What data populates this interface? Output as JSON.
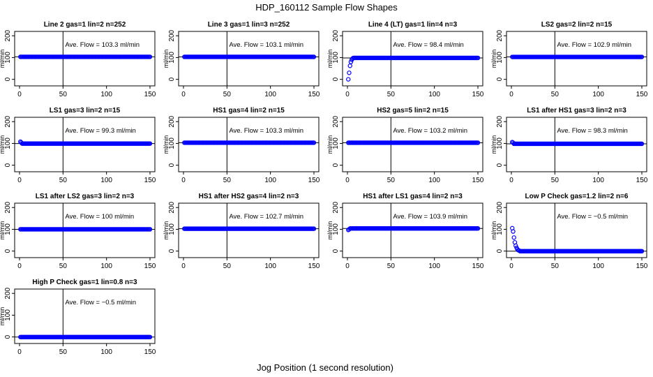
{
  "figure": {
    "title": "HDP_160112  Sample Flow Shapes",
    "xlabel": "Jog Position (1 second resolution)",
    "marker_color": "#0000ff",
    "line_color": "#000000"
  },
  "chart_data": [
    {
      "type": "scatter",
      "title": "Line 2 gas=1 lin=2 n=252",
      "ylabel": "ml/min",
      "annotation": "Ave. Flow = 103.3  ml/min",
      "xlim": [
        0,
        150
      ],
      "ylim": [
        -30,
        220
      ],
      "xticks": [
        "0",
        "50",
        "100",
        "150"
      ],
      "yticks": [
        "0",
        "100",
        "200"
      ],
      "vline": 50,
      "hline": 103.3,
      "shape": "flat",
      "series": [
        {
          "x_range": [
            1,
            150
          ],
          "y": 103.3
        }
      ]
    },
    {
      "type": "scatter",
      "title": "Line 3 gas=1 lin=3 n=252",
      "ylabel": "ml/min",
      "annotation": "Ave. Flow = 103.1  ml/min",
      "xlim": [
        0,
        150
      ],
      "ylim": [
        -30,
        220
      ],
      "xticks": [
        "0",
        "50",
        "100",
        "150"
      ],
      "yticks": [
        "0",
        "100",
        "200"
      ],
      "vline": 50,
      "hline": 103.1,
      "shape": "flat",
      "series": [
        {
          "x_range": [
            1,
            150
          ],
          "y": 103.1
        }
      ]
    },
    {
      "type": "scatter",
      "title": "Line 4 (LT) gas=1 lin=4 n=3",
      "ylabel": "ml/min",
      "annotation": "Ave. Flow = 98.4  ml/min",
      "xlim": [
        0,
        150
      ],
      "ylim": [
        -30,
        220
      ],
      "xticks": [
        "0",
        "50",
        "100",
        "150"
      ],
      "yticks": [
        "0",
        "100",
        "200"
      ],
      "vline": 50,
      "hline": 98.4,
      "shape": "rise",
      "series": [
        {
          "x_range": [
            1,
            150
          ],
          "y": 98.4,
          "initial": [
            0,
            30,
            62,
            80,
            90,
            96
          ]
        }
      ]
    },
    {
      "type": "scatter",
      "title": "LS2 gas=2 lin=2 n=15",
      "ylabel": "ml/min",
      "annotation": "Ave. Flow = 102.9  ml/min",
      "xlim": [
        0,
        150
      ],
      "ylim": [
        -30,
        220
      ],
      "xticks": [
        "0",
        "50",
        "100",
        "150"
      ],
      "yticks": [
        "0",
        "100",
        "200"
      ],
      "vline": 50,
      "hline": 102.9,
      "shape": "flat",
      "series": [
        {
          "x_range": [
            1,
            150
          ],
          "y": 102.9
        }
      ]
    },
    {
      "type": "scatter",
      "title": "LS1 gas=3 lin=2 n=15",
      "ylabel": "ml/min",
      "annotation": "Ave. Flow = 99.3  ml/min",
      "xlim": [
        0,
        150
      ],
      "ylim": [
        -30,
        220
      ],
      "xticks": [
        "0",
        "50",
        "100",
        "150"
      ],
      "yticks": [
        "0",
        "100",
        "200"
      ],
      "vline": 50,
      "hline": 99.3,
      "shape": "flat",
      "series": [
        {
          "x_range": [
            1,
            150
          ],
          "y": 99.3,
          "initial": [
            108,
            104
          ]
        }
      ]
    },
    {
      "type": "scatter",
      "title": "HS1 gas=4 lin=2 n=15",
      "ylabel": "ml/min",
      "annotation": "Ave. Flow = 103.3  ml/min",
      "xlim": [
        0,
        150
      ],
      "ylim": [
        -30,
        220
      ],
      "xticks": [
        "0",
        "50",
        "100",
        "150"
      ],
      "yticks": [
        "0",
        "100",
        "200"
      ],
      "vline": 50,
      "hline": 103.3,
      "shape": "flat",
      "series": [
        {
          "x_range": [
            1,
            150
          ],
          "y": 103.3
        }
      ]
    },
    {
      "type": "scatter",
      "title": "HS2 gas=5 lin=2 n=15",
      "ylabel": "ml/min",
      "annotation": "Ave. Flow = 103.2  ml/min",
      "xlim": [
        0,
        150
      ],
      "ylim": [
        -30,
        220
      ],
      "xticks": [
        "0",
        "50",
        "100",
        "150"
      ],
      "yticks": [
        "0",
        "100",
        "200"
      ],
      "vline": 50,
      "hline": 103.2,
      "shape": "flat",
      "series": [
        {
          "x_range": [
            1,
            150
          ],
          "y": 103.2
        }
      ]
    },
    {
      "type": "scatter",
      "title": "LS1 after HS1 gas=3 lin=2 n=3",
      "ylabel": "ml/min",
      "annotation": "Ave. Flow = 98.3  ml/min",
      "xlim": [
        0,
        150
      ],
      "ylim": [
        -30,
        220
      ],
      "xticks": [
        "0",
        "50",
        "100",
        "150"
      ],
      "yticks": [
        "0",
        "100",
        "200"
      ],
      "vline": 50,
      "hline": 98.3,
      "shape": "flat",
      "series": [
        {
          "x_range": [
            1,
            150
          ],
          "y": 98.3,
          "initial": [
            106,
            103
          ]
        }
      ]
    },
    {
      "type": "scatter",
      "title": "LS1 after LS2 gas=3 lin=2 n=3",
      "ylabel": "ml/min",
      "annotation": "Ave. Flow = 100  ml/min",
      "xlim": [
        0,
        150
      ],
      "ylim": [
        -30,
        220
      ],
      "xticks": [
        "0",
        "50",
        "100",
        "150"
      ],
      "yticks": [
        "0",
        "100",
        "200"
      ],
      "vline": 50,
      "hline": 100,
      "shape": "flat",
      "series": [
        {
          "x_range": [
            1,
            150
          ],
          "y": 100
        }
      ]
    },
    {
      "type": "scatter",
      "title": "HS1 after HS2 gas=4 lin=2 n=3",
      "ylabel": "ml/min",
      "annotation": "Ave. Flow = 102.7  ml/min",
      "xlim": [
        0,
        150
      ],
      "ylim": [
        -30,
        220
      ],
      "xticks": [
        "0",
        "50",
        "100",
        "150"
      ],
      "yticks": [
        "0",
        "100",
        "200"
      ],
      "vline": 50,
      "hline": 102.7,
      "shape": "flat",
      "series": [
        {
          "x_range": [
            1,
            150
          ],
          "y": 102.7
        }
      ]
    },
    {
      "type": "scatter",
      "title": "HS1 after LS1 gas=4 lin=2 n=3",
      "ylabel": "ml/min",
      "annotation": "Ave. Flow = 103.9  ml/min",
      "xlim": [
        0,
        150
      ],
      "ylim": [
        -30,
        220
      ],
      "xticks": [
        "0",
        "50",
        "100",
        "150"
      ],
      "yticks": [
        "0",
        "100",
        "200"
      ],
      "vline": 50,
      "hline": 103.9,
      "shape": "flat",
      "series": [
        {
          "x_range": [
            1,
            150
          ],
          "y": 103.9,
          "initial": [
            97,
            100
          ]
        }
      ]
    },
    {
      "type": "scatter",
      "title": "Low P Check gas=1.2 lin=2 n=6",
      "ylabel": "ml/min",
      "annotation": "Ave. Flow = −0.5  ml/min",
      "xlim": [
        0,
        150
      ],
      "ylim": [
        -30,
        220
      ],
      "xticks": [
        "0",
        "50",
        "100",
        "150"
      ],
      "yticks": [
        "0",
        "100",
        "200"
      ],
      "vline": 50,
      "hline": -0.5,
      "shape": "decay",
      "series": [
        {
          "x_range": [
            1,
            150
          ],
          "y": -0.5,
          "initial": [
            105,
            90,
            62,
            40,
            25,
            15,
            8,
            4,
            2
          ]
        }
      ]
    },
    {
      "type": "scatter",
      "title": "High P Check gas=1 lin=0.8 n=3",
      "ylabel": "ml/min",
      "annotation": "Ave. Flow = −0.5  ml/min",
      "xlim": [
        0,
        150
      ],
      "ylim": [
        -30,
        220
      ],
      "xticks": [
        "0",
        "50",
        "100",
        "150"
      ],
      "yticks": [
        "0",
        "100",
        "200"
      ],
      "vline": 50,
      "hline": -0.5,
      "shape": "flat",
      "series": [
        {
          "x_range": [
            1,
            150
          ],
          "y": -0.5
        }
      ]
    }
  ]
}
